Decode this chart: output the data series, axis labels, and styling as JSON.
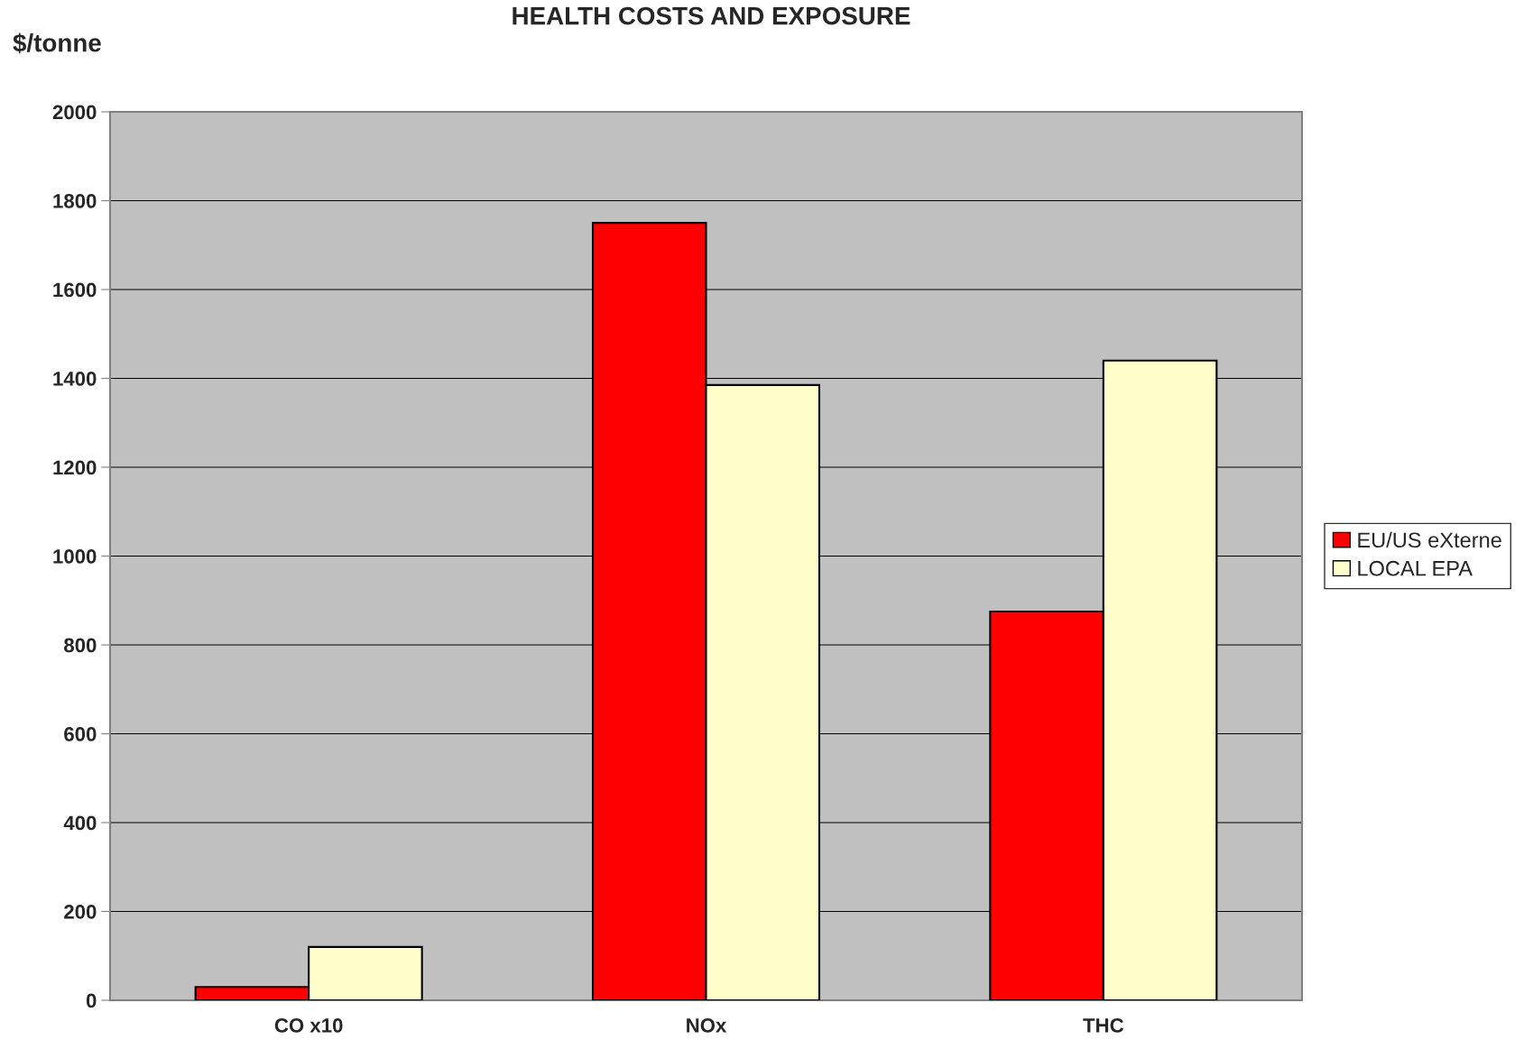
{
  "chart_data": {
    "type": "bar",
    "title": "HEALTH COSTS AND EXPOSURE",
    "ylabel": "$/tonne",
    "categories": [
      "CO x10",
      "NOx",
      "THC"
    ],
    "series": [
      {
        "name": "EU/US eXterne",
        "color": "#ff0000",
        "values": [
          30,
          1750,
          875
        ]
      },
      {
        "name": "LOCAL EPA",
        "color": "#ffffcc",
        "values": [
          120,
          1385,
          1440
        ]
      }
    ],
    "ylim": [
      0,
      2000
    ],
    "yticks": [
      0,
      200,
      400,
      600,
      800,
      1000,
      1200,
      1400,
      1600,
      1800,
      2000
    ],
    "grid": "y",
    "legend": "right"
  }
}
